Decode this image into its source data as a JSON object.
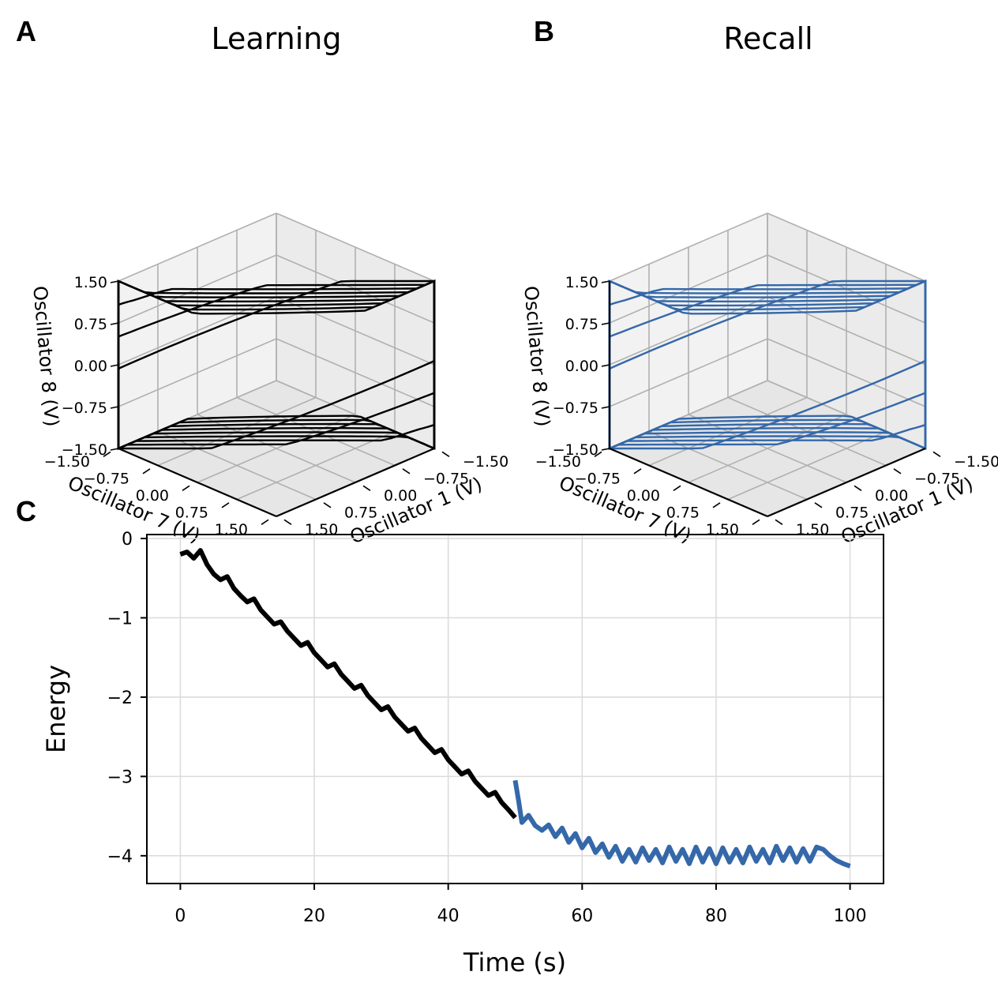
{
  "panels": {
    "a": {
      "letter": "A",
      "title": "Learning"
    },
    "b": {
      "letter": "B",
      "title": "Recall"
    },
    "c": {
      "letter": "C"
    }
  },
  "colors": {
    "learning": "#000000",
    "recall": "#3468a9"
  },
  "chart_data": [
    {
      "type": "line",
      "subtype": "3d-trajectory",
      "panel": "A",
      "title": "Learning",
      "xlabel": "Oscillator 1 (V)",
      "ylabel": "Oscillator 7 (V)",
      "zlabel": "Oscillator 8 (V)",
      "x_ticks": [
        "−1.50",
        "−0.75",
        "0.00",
        "0.75",
        "1.50"
      ],
      "y_ticks": [
        "−1.50",
        "−0.75",
        "0.00",
        "0.75",
        "1.50"
      ],
      "z_ticks": [
        "1.50",
        "0.75",
        "0.00",
        "−0.75",
        "−1.50"
      ],
      "xlim": [
        -1.5,
        1.5
      ],
      "ylim": [
        -1.5,
        1.5
      ],
      "zlim": [
        -1.5,
        1.5
      ],
      "color": "#000000"
    },
    {
      "type": "line",
      "subtype": "3d-trajectory",
      "panel": "B",
      "title": "Recall",
      "xlabel": "Oscillator 1 (V)",
      "ylabel": "Oscillator 7 (V)",
      "zlabel": "Oscillator 8 (V)",
      "x_ticks": [
        "−1.50",
        "−0.75",
        "0.00",
        "0.75",
        "1.50"
      ],
      "y_ticks": [
        "−1.50",
        "−0.75",
        "0.00",
        "0.75",
        "1.50"
      ],
      "z_ticks": [
        "1.50",
        "0.75",
        "0.00",
        "−0.75",
        "−1.50"
      ],
      "xlim": [
        -1.5,
        1.5
      ],
      "ylim": [
        -1.5,
        1.5
      ],
      "zlim": [
        -1.5,
        1.5
      ],
      "color": "#3468a9"
    },
    {
      "type": "line",
      "panel": "C",
      "xlabel": "Time (s)",
      "ylabel": "Energy",
      "xlim": [
        -5,
        105
      ],
      "ylim": [
        -4.35,
        0.05
      ],
      "x_ticks": [
        0,
        20,
        40,
        60,
        80,
        100
      ],
      "y_ticks": [
        0,
        -1,
        -2,
        -3,
        -4
      ],
      "x_tick_labels": [
        "0",
        "20",
        "40",
        "60",
        "80",
        "100"
      ],
      "y_tick_labels": [
        "0",
        "−1",
        "−2",
        "−3",
        "−4"
      ],
      "grid": true,
      "series": [
        {
          "name": "Learning",
          "color": "#000000",
          "x": [
            0,
            1,
            2,
            3,
            4,
            5,
            6,
            7,
            8,
            9,
            10,
            11,
            12,
            13,
            14,
            15,
            16,
            17,
            18,
            19,
            20,
            21,
            22,
            23,
            24,
            25,
            26,
            27,
            28,
            29,
            30,
            31,
            32,
            33,
            34,
            35,
            36,
            37,
            38,
            39,
            40,
            41,
            42,
            43,
            44,
            45,
            46,
            47,
            48,
            49,
            50
          ],
          "y": [
            -0.2,
            -0.17,
            -0.25,
            -0.15,
            -0.33,
            -0.45,
            -0.52,
            -0.48,
            -0.63,
            -0.72,
            -0.8,
            -0.76,
            -0.9,
            -0.99,
            -1.08,
            -1.05,
            -1.17,
            -1.26,
            -1.35,
            -1.31,
            -1.44,
            -1.53,
            -1.62,
            -1.58,
            -1.71,
            -1.8,
            -1.89,
            -1.85,
            -1.98,
            -2.07,
            -2.16,
            -2.12,
            -2.25,
            -2.34,
            -2.43,
            -2.39,
            -2.52,
            -2.61,
            -2.7,
            -2.66,
            -2.79,
            -2.88,
            -2.97,
            -2.93,
            -3.06,
            -3.15,
            -3.24,
            -3.2,
            -3.33,
            -3.42,
            -3.52
          ]
        },
        {
          "name": "Recall",
          "color": "#3468a9",
          "x": [
            50,
            50.5,
            51,
            52,
            53,
            54,
            55,
            56,
            57,
            58,
            59,
            60,
            61,
            62,
            63,
            64,
            65,
            66,
            67,
            68,
            69,
            70,
            71,
            72,
            73,
            74,
            75,
            76,
            77,
            78,
            79,
            80,
            81,
            82,
            83,
            84,
            85,
            86,
            87,
            88,
            89,
            90,
            91,
            92,
            93,
            94,
            95,
            96,
            97,
            98,
            99,
            100
          ],
          "y": [
            -3.05,
            -3.3,
            -3.58,
            -3.49,
            -3.62,
            -3.68,
            -3.61,
            -3.76,
            -3.65,
            -3.83,
            -3.72,
            -3.9,
            -3.78,
            -3.96,
            -3.85,
            -4.02,
            -3.88,
            -4.07,
            -3.92,
            -4.08,
            -3.9,
            -4.06,
            -3.92,
            -4.09,
            -3.89,
            -4.07,
            -3.92,
            -4.1,
            -3.89,
            -4.08,
            -3.91,
            -4.1,
            -3.9,
            -4.08,
            -3.92,
            -4.09,
            -3.89,
            -4.07,
            -3.92,
            -4.09,
            -3.88,
            -4.06,
            -3.9,
            -4.08,
            -3.91,
            -4.07,
            -3.89,
            -3.92,
            -4.0,
            -4.06,
            -4.1,
            -4.13
          ]
        }
      ]
    }
  ]
}
